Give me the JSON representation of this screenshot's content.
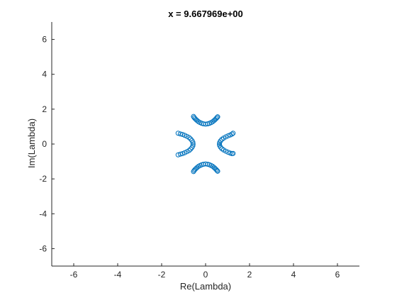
{
  "chart_data": {
    "type": "scatter",
    "title": "x = 9.667969e+00",
    "xlabel": "Re(Lambda)",
    "ylabel": "Im(Lambda)",
    "xlim": [
      -7,
      7
    ],
    "ylim": [
      -7,
      7
    ],
    "xticks": [
      -6,
      -4,
      -2,
      0,
      2,
      4,
      6
    ],
    "yticks": [
      -6,
      -4,
      -2,
      0,
      2,
      4,
      6
    ],
    "grid": false,
    "marker": "open-circle",
    "marker_color": "#0072BD",
    "series": [
      {
        "points": [
          [
            -0.55,
            1.58
          ],
          [
            -0.52,
            1.52
          ],
          [
            -0.48,
            1.46
          ],
          [
            -0.43,
            1.4
          ],
          [
            -0.38,
            1.34
          ],
          [
            -0.32,
            1.28
          ],
          [
            -0.25,
            1.23
          ],
          [
            -0.18,
            1.19
          ],
          [
            -0.1,
            1.16
          ],
          [
            0.0,
            1.14
          ],
          [
            0.1,
            1.16
          ],
          [
            0.18,
            1.19
          ],
          [
            0.25,
            1.23
          ],
          [
            0.32,
            1.28
          ],
          [
            0.38,
            1.34
          ],
          [
            0.43,
            1.4
          ],
          [
            0.48,
            1.46
          ],
          [
            0.52,
            1.52
          ],
          [
            0.55,
            1.56
          ],
          [
            -0.55,
            -1.58
          ],
          [
            -0.52,
            -1.52
          ],
          [
            -0.48,
            -1.46
          ],
          [
            -0.43,
            -1.4
          ],
          [
            -0.38,
            -1.34
          ],
          [
            -0.32,
            -1.28
          ],
          [
            -0.25,
            -1.23
          ],
          [
            -0.18,
            -1.19
          ],
          [
            -0.1,
            -1.16
          ],
          [
            0.0,
            -1.14
          ],
          [
            0.1,
            -1.16
          ],
          [
            0.18,
            -1.19
          ],
          [
            0.25,
            -1.23
          ],
          [
            0.32,
            -1.28
          ],
          [
            0.38,
            -1.34
          ],
          [
            0.43,
            -1.4
          ],
          [
            0.48,
            -1.46
          ],
          [
            0.52,
            -1.52
          ],
          [
            0.55,
            -1.56
          ],
          [
            -1.25,
            0.62
          ],
          [
            -1.15,
            0.58
          ],
          [
            -1.05,
            0.55
          ],
          [
            -0.95,
            0.5
          ],
          [
            -0.85,
            0.44
          ],
          [
            -0.75,
            0.37
          ],
          [
            -0.68,
            0.29
          ],
          [
            -0.62,
            0.2
          ],
          [
            -0.58,
            0.1
          ],
          [
            -0.57,
            0.0
          ],
          [
            -0.58,
            -0.1
          ],
          [
            -0.62,
            -0.2
          ],
          [
            -0.68,
            -0.29
          ],
          [
            -0.75,
            -0.37
          ],
          [
            -0.85,
            -0.44
          ],
          [
            -0.95,
            -0.5
          ],
          [
            -1.05,
            -0.55
          ],
          [
            -1.15,
            -0.58
          ],
          [
            -1.25,
            -0.62
          ],
          [
            1.25,
            0.62
          ],
          [
            1.2,
            0.57
          ],
          [
            1.12,
            0.52
          ],
          [
            1.02,
            0.47
          ],
          [
            0.92,
            0.41
          ],
          [
            0.82,
            0.34
          ],
          [
            0.74,
            0.27
          ],
          [
            0.68,
            0.18
          ],
          [
            0.64,
            0.09
          ],
          [
            0.63,
            0.0
          ],
          [
            0.64,
            -0.09
          ],
          [
            0.68,
            -0.18
          ],
          [
            0.74,
            -0.27
          ],
          [
            0.82,
            -0.34
          ],
          [
            0.92,
            -0.41
          ],
          [
            1.02,
            -0.47
          ],
          [
            1.12,
            -0.52
          ],
          [
            1.2,
            -0.55
          ],
          [
            1.25,
            -0.54
          ]
        ]
      }
    ]
  }
}
